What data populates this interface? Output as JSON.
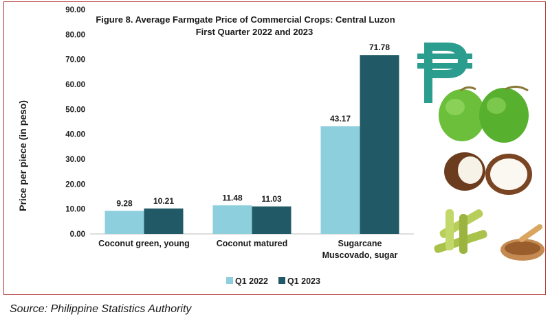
{
  "chart_data": {
    "type": "bar",
    "title_line1": "Figure 8. Average Farmgate Price of Commercial Crops: Central Luzon",
    "title_line2": "First Quarter 2022 and 2023",
    "ylabel": "Price per piece (in peso)",
    "xlabel": "",
    "ylim": [
      0,
      90
    ],
    "y_ticks": [
      "0.00",
      "10.00",
      "20.00",
      "30.00",
      "40.00",
      "50.00",
      "60.00",
      "70.00",
      "80.00",
      "90.00"
    ],
    "categories": [
      [
        "Coconut green, young"
      ],
      [
        "Coconut matured"
      ],
      [
        "Sugarcane",
        "Muscovado, sugar"
      ]
    ],
    "series": [
      {
        "name": "Q1 2022",
        "color": "#8ecfdd",
        "values": [
          9.28,
          11.48,
          43.17
        ],
        "labels": [
          "9.28",
          "11.48",
          "43.17"
        ]
      },
      {
        "name": "Q1 2023",
        "color": "#215a66",
        "values": [
          10.21,
          11.03,
          71.78
        ],
        "labels": [
          "10.21",
          "11.03",
          "71.78"
        ]
      }
    ],
    "legend_position": "bottom",
    "grid": false
  },
  "decorations": {
    "currency_symbol": "₱",
    "currency_color": "#2a9d8f",
    "icons": [
      "peso-sign-icon",
      "green-coconut-icon",
      "matured-coconut-icon",
      "sugarcane-icon"
    ]
  },
  "source": "Source: Philippine Statistics Authority"
}
